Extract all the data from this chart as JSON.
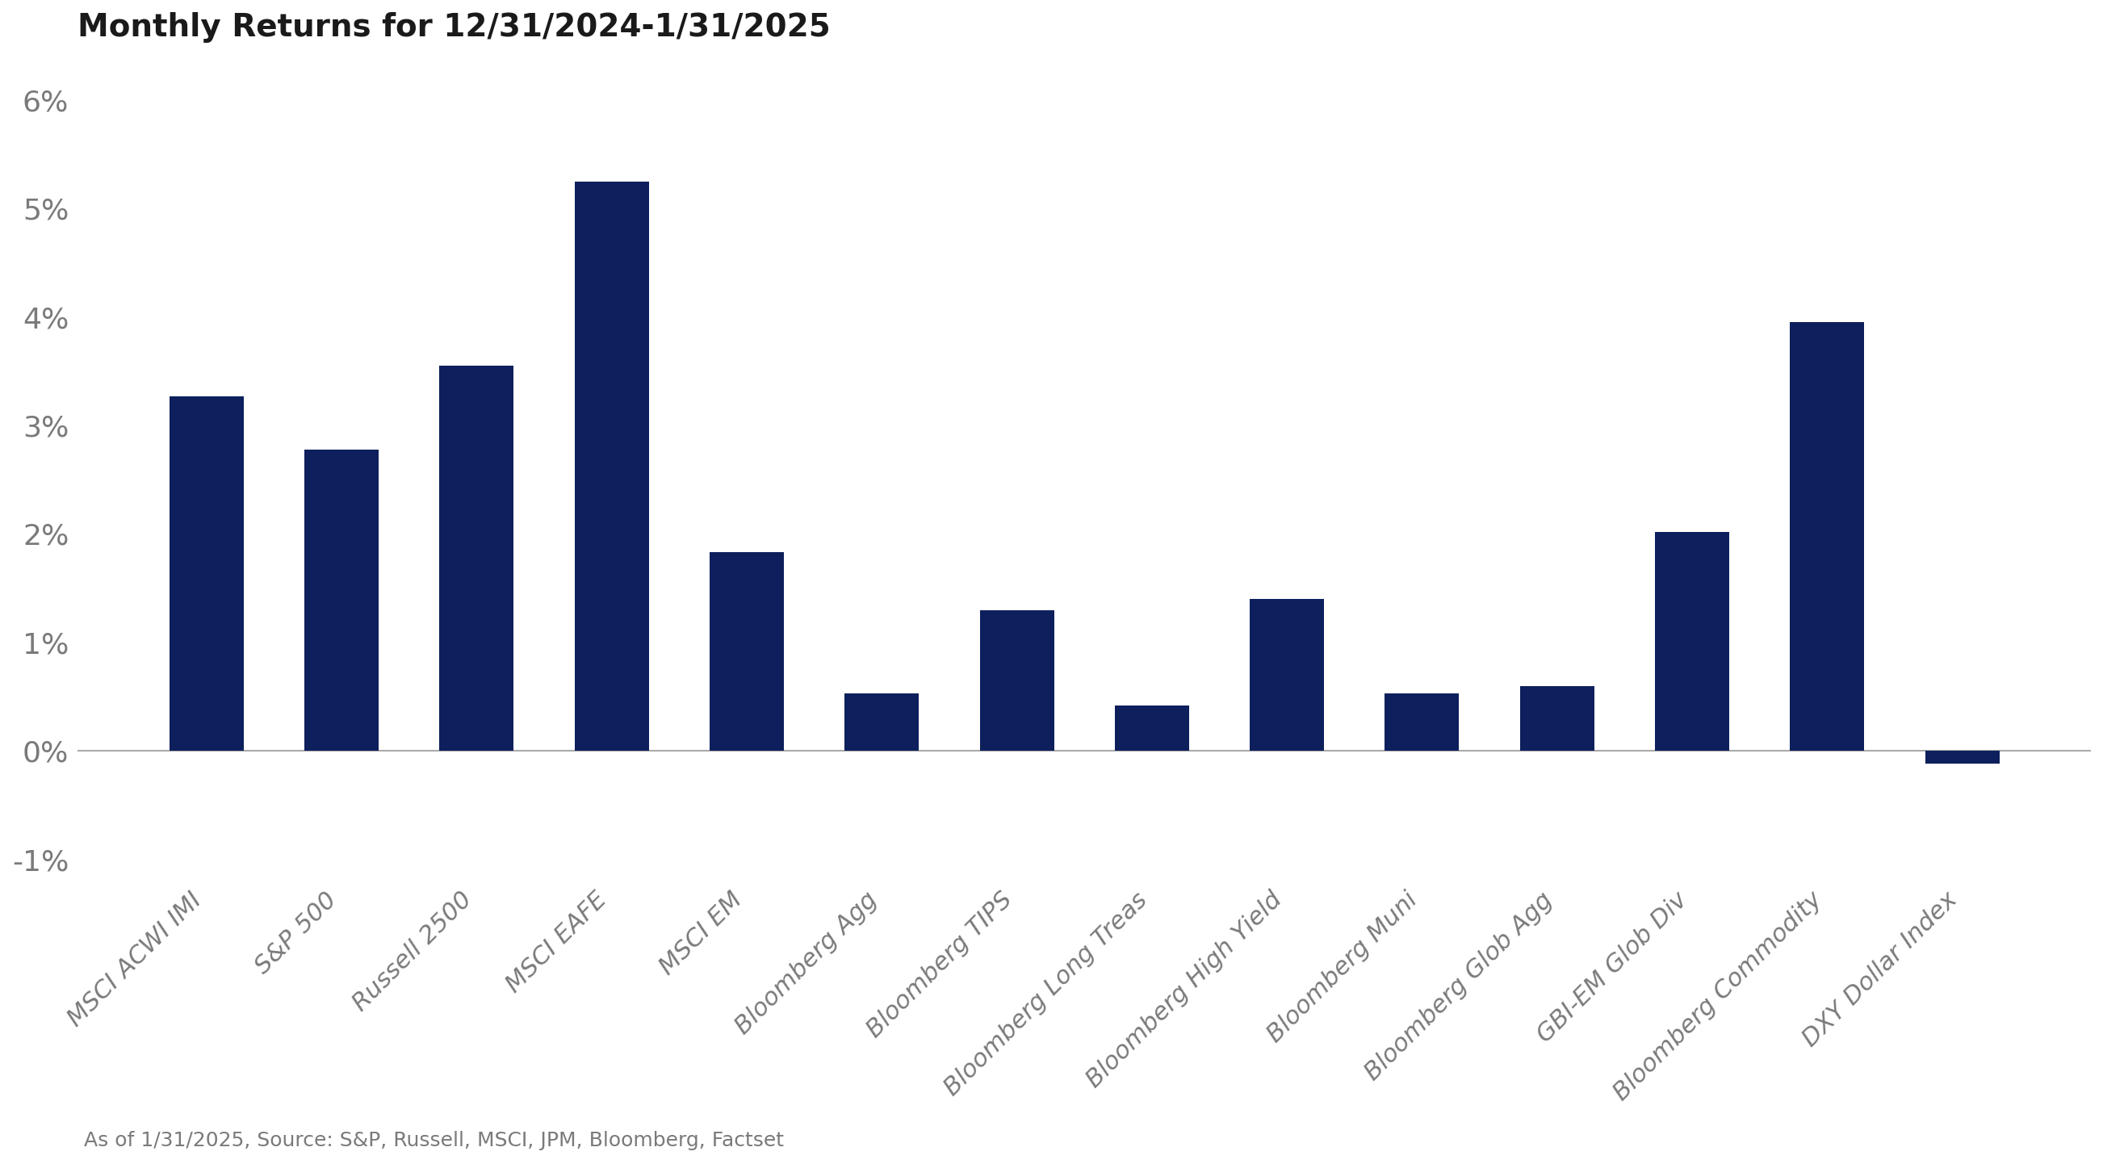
{
  "title": "Monthly Returns for 12/31/2024-1/31/2025",
  "categories": [
    "MSCI ACWI IMI",
    "S&P 500",
    "Russell 2500",
    "MSCI EAFE",
    "MSCI EM",
    "Bloomberg Agg",
    "Bloomberg TIPS",
    "Bloomberg Long Treas",
    "Bloomberg High Yield",
    "Bloomberg Muni",
    "Bloomberg Glob Agg",
    "GBI-EM Glob Div",
    "Bloomberg Commodity",
    "DXY Dollar Index"
  ],
  "values": [
    3.27,
    2.78,
    3.55,
    5.25,
    1.83,
    0.53,
    1.3,
    0.42,
    1.4,
    0.53,
    0.6,
    2.02,
    3.95,
    -0.12
  ],
  "bar_color": "#0d1f5c",
  "background_color": "#ffffff",
  "ylim_min": -1.2,
  "ylim_max": 6.4,
  "yticks": [
    -1,
    0,
    1,
    2,
    3,
    4,
    5,
    6
  ],
  "ytick_labels": [
    "-1%",
    "0%",
    "1%",
    "2%",
    "3%",
    "4%",
    "5%",
    "6%"
  ],
  "title_fontsize": 28,
  "ytick_fontsize": 26,
  "xtick_fontsize": 22,
  "footnote_fontsize": 18,
  "footnote": "As of 1/31/2025, Source: S&P, Russell, MSCI, JPM, Bloomberg, Factset",
  "label_color": "#7a7a7a",
  "title_color": "#1a1a1a",
  "zeroline_color": "#aaaaaa",
  "bar_width": 0.55
}
